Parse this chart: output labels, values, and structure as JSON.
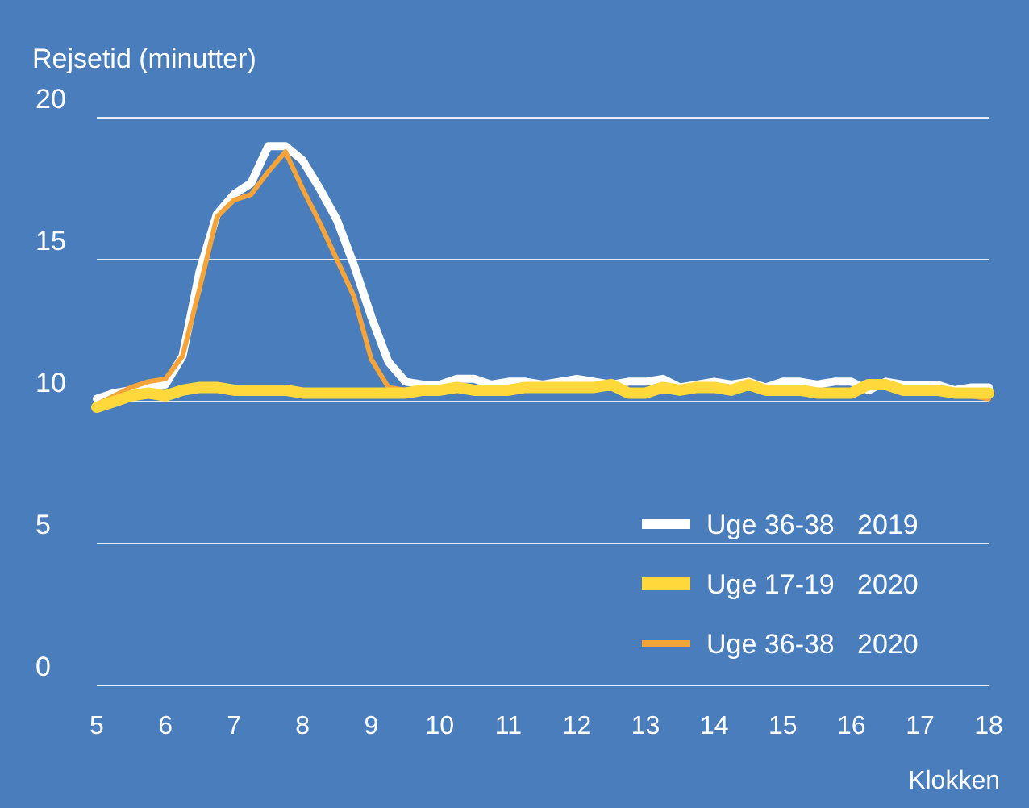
{
  "chart_data": {
    "type": "line",
    "ylabel": "Rejsetid (minutter)",
    "xlabel": "Klokken",
    "x": [
      5,
      5.25,
      5.5,
      5.75,
      6,
      6.25,
      6.5,
      6.75,
      7,
      7.25,
      7.5,
      7.75,
      8,
      8.25,
      8.5,
      8.75,
      9,
      9.25,
      9.5,
      9.75,
      10,
      10.25,
      10.5,
      10.75,
      11,
      11.25,
      11.5,
      11.75,
      12,
      12.25,
      12.5,
      12.75,
      13,
      13.25,
      13.5,
      13.75,
      14,
      14.25,
      14.5,
      14.75,
      15,
      15.25,
      15.5,
      15.75,
      16,
      16.25,
      16.5,
      16.75,
      17,
      17.25,
      17.5,
      17.75,
      18
    ],
    "xlim": [
      5,
      18
    ],
    "xticks": [
      5,
      6,
      7,
      8,
      9,
      10,
      11,
      12,
      13,
      14,
      15,
      16,
      17,
      18
    ],
    "ylim": [
      0,
      20
    ],
    "yticks": [
      0,
      5,
      10,
      15,
      20
    ],
    "grid": "y",
    "legend": "bottom right",
    "line_style": "solid",
    "series": [
      {
        "name": "Uge 36-38   2019",
        "color": "#ffffff",
        "values": [
          10.1,
          10.3,
          10.4,
          10.5,
          10.6,
          11.6,
          14.6,
          16.6,
          17.3,
          17.7,
          19.0,
          19.0,
          18.5,
          17.5,
          16.4,
          14.8,
          13.0,
          11.4,
          10.7,
          10.6,
          10.6,
          10.8,
          10.8,
          10.6,
          10.7,
          10.7,
          10.6,
          10.7,
          10.8,
          10.7,
          10.6,
          10.7,
          10.7,
          10.8,
          10.5,
          10.6,
          10.7,
          10.6,
          10.7,
          10.5,
          10.7,
          10.7,
          10.6,
          10.7,
          10.7,
          10.4,
          10.7,
          10.6,
          10.6,
          10.6,
          10.4,
          10.5,
          10.5
        ]
      },
      {
        "name": "Uge 17-19   2020",
        "color": "#ffd93b",
        "values": [
          9.8,
          10.0,
          10.2,
          10.3,
          10.2,
          10.4,
          10.5,
          10.5,
          10.4,
          10.4,
          10.4,
          10.4,
          10.3,
          10.3,
          10.3,
          10.3,
          10.3,
          10.3,
          10.3,
          10.4,
          10.4,
          10.5,
          10.4,
          10.4,
          10.4,
          10.5,
          10.5,
          10.5,
          10.5,
          10.5,
          10.6,
          10.3,
          10.3,
          10.5,
          10.4,
          10.5,
          10.5,
          10.4,
          10.6,
          10.4,
          10.4,
          10.4,
          10.3,
          10.3,
          10.3,
          10.6,
          10.6,
          10.4,
          10.4,
          10.4,
          10.3,
          10.3,
          10.3
        ]
      },
      {
        "name": "Uge 36-38   2020",
        "color": "#f5a43a",
        "values": [
          9.9,
          10.2,
          10.5,
          10.7,
          10.8,
          11.6,
          14.0,
          16.5,
          17.1,
          17.3,
          18.1,
          18.8,
          17.5,
          16.3,
          15.0,
          13.7,
          11.5,
          10.5,
          10.4,
          10.4,
          10.4,
          10.5,
          10.4,
          10.4,
          10.4,
          10.5,
          10.5,
          10.5,
          10.5,
          10.5,
          10.6,
          10.3,
          10.3,
          10.5,
          10.4,
          10.5,
          10.5,
          10.4,
          10.6,
          10.4,
          10.4,
          10.4,
          10.3,
          10.3,
          10.4,
          10.5,
          10.5,
          10.3,
          10.3,
          10.3,
          10.3,
          10.2,
          10.1
        ]
      }
    ]
  }
}
